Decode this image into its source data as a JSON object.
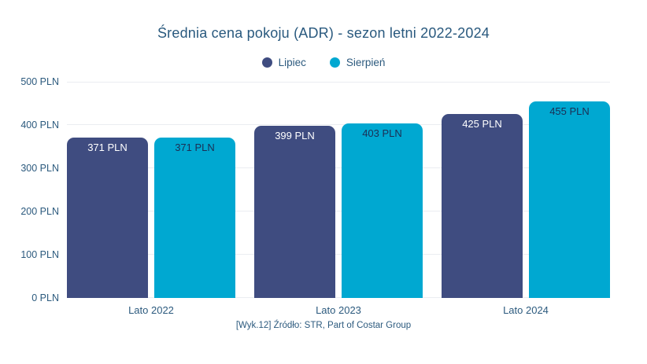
{
  "title": "Średnia cena pokoju (ADR) - sezon letni 2022-2024",
  "footer": "[Wyk.12] Źródło: STR, Part of Costar Group",
  "legend": [
    {
      "label": "Lipiec",
      "color": "#3f4c80"
    },
    {
      "label": "Sierpień",
      "color": "#00a8d1"
    }
  ],
  "colors": {
    "title_text": "#29597e",
    "axis_text": "#2c5a7e",
    "gridline": "#eaedf1",
    "background": "#ffffff",
    "series_lipiec": "#3f4c80",
    "series_sierpien": "#00a8d1"
  },
  "chart_data": {
    "type": "bar",
    "title": "Średnia cena pokoju (ADR) - sezon letni 2022-2024",
    "xlabel": "",
    "ylabel": "",
    "categories": [
      "Lato 2022",
      "Lato 2023",
      "Lato 2024"
    ],
    "series": [
      {
        "name": "Lipiec",
        "color": "#3f4c80",
        "label_color": "#ffffff",
        "values": [
          371,
          399,
          425
        ]
      },
      {
        "name": "Sierpień",
        "color": "#00a8d1",
        "label_color": "#1c2e54",
        "values": [
          371,
          403,
          455
        ]
      }
    ],
    "value_suffix": " PLN",
    "ylim": [
      0,
      500
    ],
    "yticks": [
      0,
      100,
      200,
      300,
      400,
      500
    ],
    "ytick_suffix": " PLN",
    "grid": true,
    "legend_position": "top",
    "source_caption": "[Wyk.12] Źródło: STR, Part of Costar Group"
  }
}
